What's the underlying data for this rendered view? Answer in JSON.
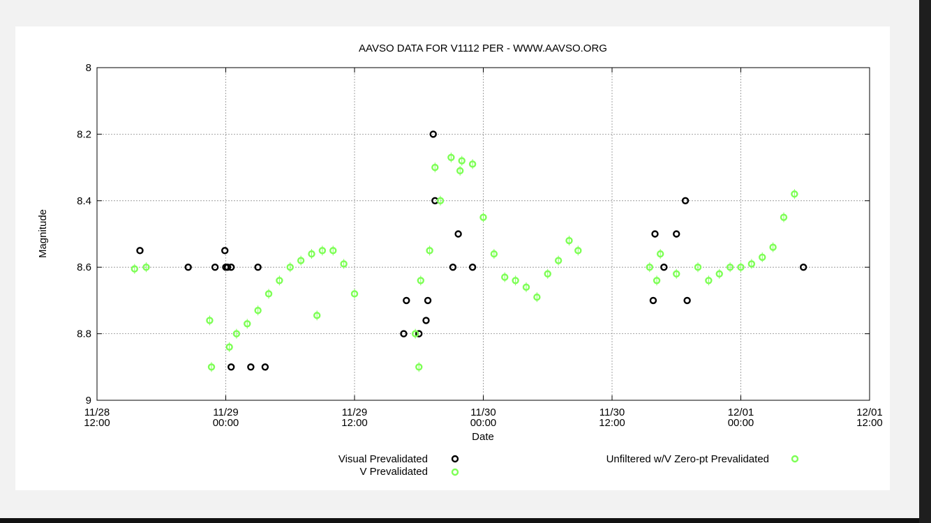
{
  "chart_data": {
    "type": "scatter",
    "title": "AAVSO DATA FOR V1112 PER - WWW.AAVSO.ORG",
    "xlabel": "Date",
    "ylabel": "Magnitude",
    "y_inverted": true,
    "ylim": [
      8,
      9
    ],
    "xlim": [
      "2020-11-28 12:00",
      "2020-12-01 12:00"
    ],
    "grid": true,
    "legend_position": "bottom",
    "x_ticks": [
      {
        "x": "2020-11-28 12:00",
        "line1": "11/28",
        "line2": "12:00"
      },
      {
        "x": "2020-11-29 00:00",
        "line1": "11/29",
        "line2": "00:00"
      },
      {
        "x": "2020-11-29 12:00",
        "line1": "11/29",
        "line2": "12:00"
      },
      {
        "x": "2020-11-30 00:00",
        "line1": "11/30",
        "line2": "00:00"
      },
      {
        "x": "2020-11-30 12:00",
        "line1": "11/30",
        "line2": "12:00"
      },
      {
        "x": "2020-12-01 00:00",
        "line1": "12/01",
        "line2": "00:00"
      },
      {
        "x": "2020-12-01 12:00",
        "line1": "12/01",
        "line2": "12:00"
      }
    ],
    "y_ticks": [
      "8",
      "8.2",
      "8.4",
      "8.6",
      "8.8",
      "9"
    ],
    "colors": {
      "visual": "#000000",
      "v": "#7dff55",
      "unfiltered": "#7dff55",
      "frame": "#000000",
      "grid": "#8c8c8c"
    },
    "series": [
      {
        "name": "Visual Prevalidated",
        "marker": "black-circle",
        "points": [
          [
            "2020-11-28 16:00",
            8.55
          ],
          [
            "2020-11-28 20:30",
            8.6
          ],
          [
            "2020-11-28 23:00",
            8.6
          ],
          [
            "2020-11-28 23:55",
            8.55
          ],
          [
            "2020-11-29 00:00",
            8.6
          ],
          [
            "2020-11-29 00:10",
            8.6
          ],
          [
            "2020-11-29 00:30",
            8.6
          ],
          [
            "2020-11-29 00:30",
            8.9
          ],
          [
            "2020-11-29 02:20",
            8.9
          ],
          [
            "2020-11-29 03:00",
            8.6
          ],
          [
            "2020-11-29 03:40",
            8.9
          ],
          [
            "2020-11-29 16:35",
            8.8
          ],
          [
            "2020-11-29 16:50",
            8.7
          ],
          [
            "2020-11-29 18:00",
            8.8
          ],
          [
            "2020-11-29 18:40",
            8.76
          ],
          [
            "2020-11-29 18:50",
            8.7
          ],
          [
            "2020-11-29 19:20",
            8.2
          ],
          [
            "2020-11-29 19:30",
            8.4
          ],
          [
            "2020-11-29 21:10",
            8.6
          ],
          [
            "2020-11-29 21:40",
            8.5
          ],
          [
            "2020-11-29 23:00",
            8.6
          ],
          [
            "2020-11-30 15:50",
            8.7
          ],
          [
            "2020-11-30 16:00",
            8.5
          ],
          [
            "2020-11-30 16:50",
            8.6
          ],
          [
            "2020-11-30 18:00",
            8.5
          ],
          [
            "2020-11-30 18:50",
            8.4
          ],
          [
            "2020-11-30 19:00",
            8.7
          ],
          [
            "2020-12-01 05:50",
            8.6
          ]
        ]
      },
      {
        "name": "V Prevalidated",
        "marker": "green-circle",
        "points": [
          [
            "2020-11-28 15:30",
            8.605
          ],
          [
            "2020-11-28 16:35",
            8.6
          ],
          [
            "2020-11-28 22:30",
            8.76
          ],
          [
            "2020-11-28 22:40",
            8.9
          ],
          [
            "2020-11-29 08:30",
            8.745
          ],
          [
            "2020-11-29 18:00",
            8.9
          ],
          [
            "2020-11-29 17:40",
            8.8
          ],
          [
            "2020-11-29 21:50",
            8.31
          ],
          [
            "2020-11-30 15:30",
            8.6
          ],
          [
            "2020-11-30 16:30",
            8.56
          ]
        ]
      },
      {
        "name": "Unfiltered w/V Zero-pt Prevalidated",
        "marker": "green-circle",
        "points": [
          [
            "2020-11-29 00:20",
            8.84
          ],
          [
            "2020-11-29 01:00",
            8.8
          ],
          [
            "2020-11-29 02:00",
            8.77
          ],
          [
            "2020-11-29 03:00",
            8.73
          ],
          [
            "2020-11-29 04:00",
            8.68
          ],
          [
            "2020-11-29 05:00",
            8.64
          ],
          [
            "2020-11-29 06:00",
            8.6
          ],
          [
            "2020-11-29 07:00",
            8.58
          ],
          [
            "2020-11-29 08:00",
            8.56
          ],
          [
            "2020-11-29 09:00",
            8.55
          ],
          [
            "2020-11-29 10:00",
            8.55
          ],
          [
            "2020-11-29 11:00",
            8.59
          ],
          [
            "2020-11-29 12:00",
            8.68
          ],
          [
            "2020-11-29 18:10",
            8.64
          ],
          [
            "2020-11-29 19:00",
            8.55
          ],
          [
            "2020-11-29 19:30",
            8.3
          ],
          [
            "2020-11-29 20:00",
            8.4
          ],
          [
            "2020-11-29 21:00",
            8.27
          ],
          [
            "2020-11-29 22:00",
            8.28
          ],
          [
            "2020-11-29 23:00",
            8.29
          ],
          [
            "2020-11-30 00:00",
            8.45
          ],
          [
            "2020-11-30 01:00",
            8.56
          ],
          [
            "2020-11-30 02:00",
            8.63
          ],
          [
            "2020-11-30 03:00",
            8.64
          ],
          [
            "2020-11-30 04:00",
            8.66
          ],
          [
            "2020-11-30 05:00",
            8.69
          ],
          [
            "2020-11-30 06:00",
            8.62
          ],
          [
            "2020-11-30 07:00",
            8.58
          ],
          [
            "2020-11-30 08:00",
            8.52
          ],
          [
            "2020-11-30 08:50",
            8.55
          ],
          [
            "2020-11-30 16:10",
            8.64
          ],
          [
            "2020-11-30 18:00",
            8.62
          ],
          [
            "2020-11-30 20:00",
            8.6
          ],
          [
            "2020-11-30 21:00",
            8.64
          ],
          [
            "2020-11-30 22:00",
            8.62
          ],
          [
            "2020-11-30 23:00",
            8.6
          ],
          [
            "2020-12-01 00:00",
            8.6
          ],
          [
            "2020-12-01 01:00",
            8.59
          ],
          [
            "2020-12-01 02:00",
            8.57
          ],
          [
            "2020-12-01 03:00",
            8.54
          ],
          [
            "2020-12-01 04:00",
            8.45
          ],
          [
            "2020-12-01 05:00",
            8.38
          ]
        ]
      }
    ],
    "legend": [
      {
        "label": "Visual Prevalidated",
        "marker": "black-circle"
      },
      {
        "label": "V Prevalidated",
        "marker": "green-circle"
      },
      {
        "label": "Unfiltered w/V Zero-pt Prevalidated",
        "marker": "green-circle"
      }
    ]
  }
}
